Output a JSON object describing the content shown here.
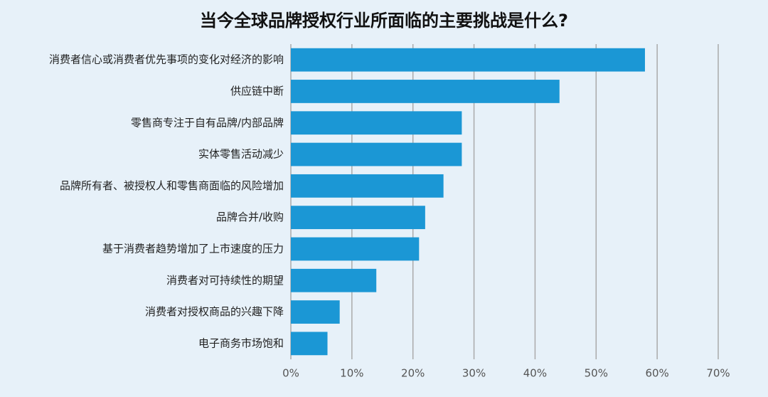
{
  "chart_data": {
    "type": "hbar",
    "title": "当今全球品牌授权行业所面临的主要挑战是什么?",
    "categories": [
      "消费者信心或消费者优先事项的变化对经济的影响",
      "供应链中断",
      "零售商专注于自有品牌/内部品牌",
      "实体零售活动减少",
      "品牌所有者、被授权人和零售商面临的风险增加",
      "品牌合并/收购",
      "基于消费者趋势增加了上市速度的压力",
      "消费者对可持续性的期望",
      "消费者对授权商品的兴趣下降",
      "电子商务市场饱和"
    ],
    "values": [
      58,
      44,
      28,
      28,
      25,
      22,
      21,
      14,
      8,
      6
    ],
    "color": "#1b97d5",
    "xlim": [
      0,
      70
    ],
    "xticks": [
      {
        "value": 0,
        "label": "0%"
      },
      {
        "value": 10,
        "label": "10%"
      },
      {
        "value": 20,
        "label": "20%"
      },
      {
        "value": 30,
        "label": "30%"
      },
      {
        "value": 40,
        "label": "40%"
      },
      {
        "value": 50,
        "label": "50%"
      },
      {
        "value": 60,
        "label": "60%"
      },
      {
        "value": 70,
        "label": "70%"
      }
    ],
    "grid": true
  }
}
